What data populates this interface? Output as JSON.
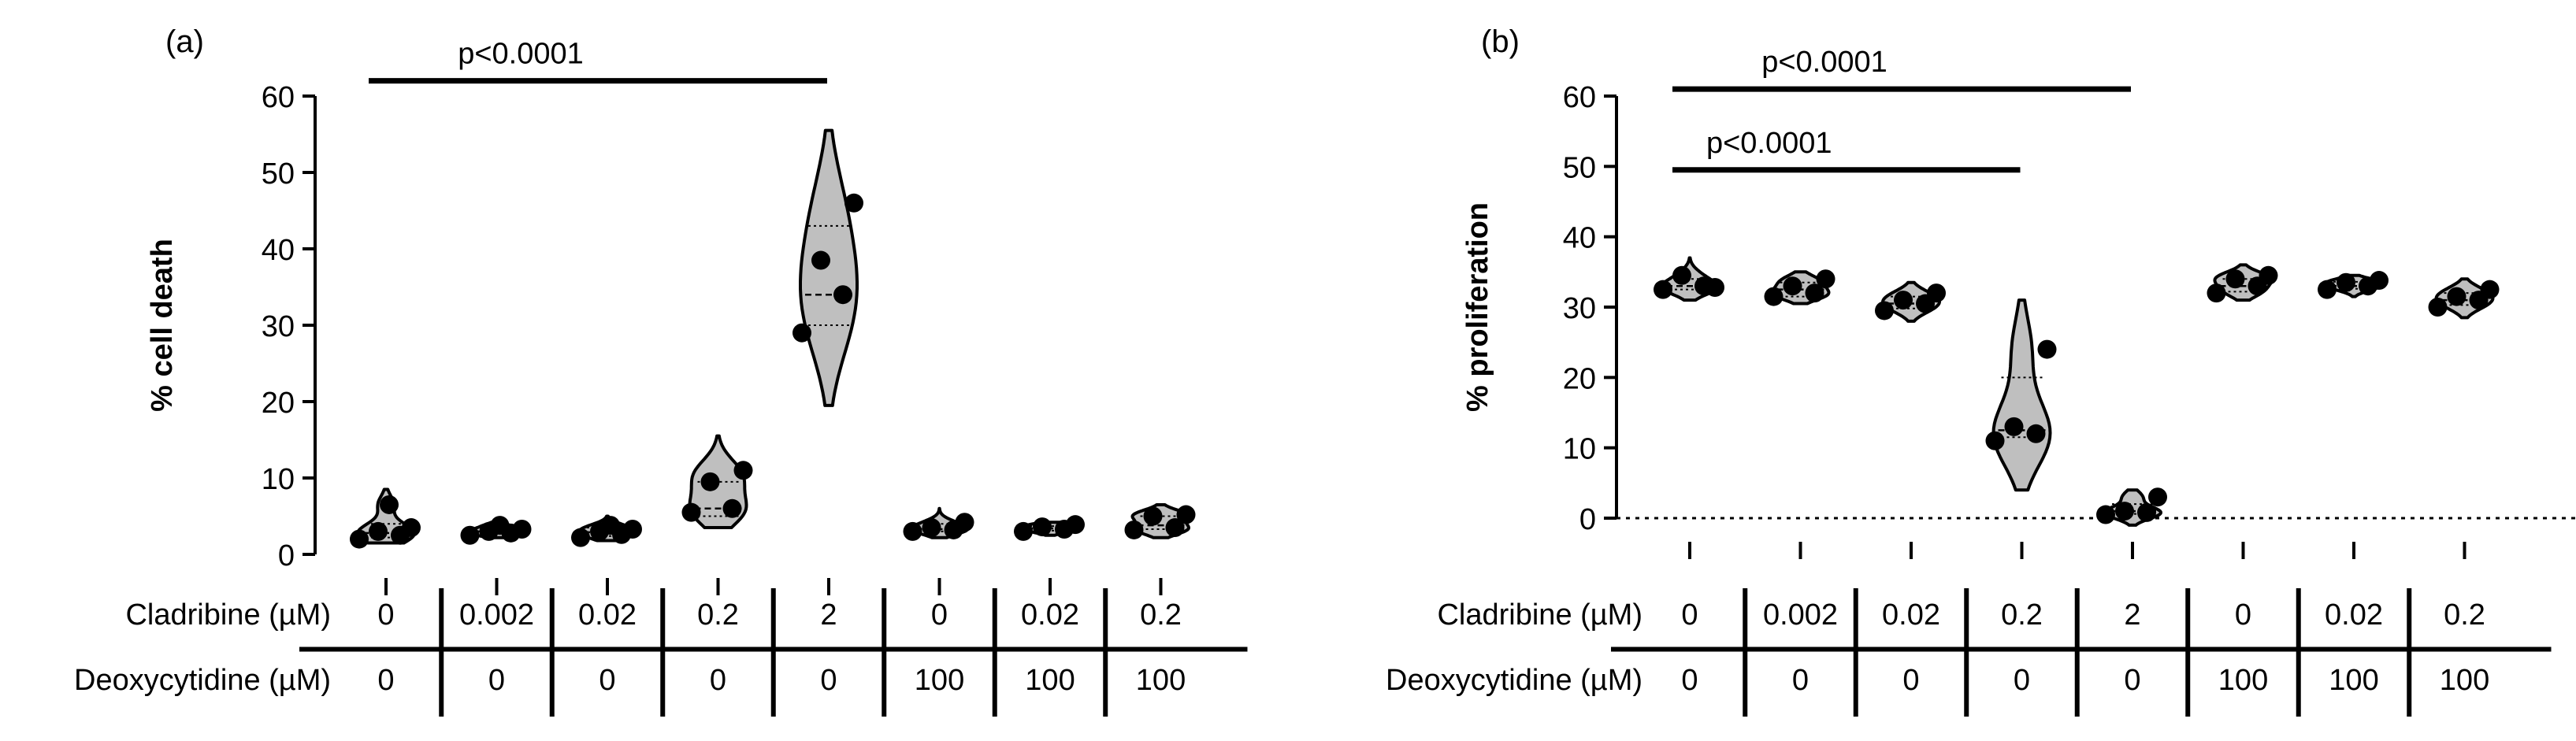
{
  "chart_data": [
    {
      "type": "violin",
      "panel_label": "(a)",
      "ylabel": "% cell death",
      "ylim": [
        0,
        60
      ],
      "yticks": [
        0,
        10,
        20,
        30,
        40,
        50,
        60
      ],
      "categories": [
        "0|0",
        "0.002|0",
        "0.02|0",
        "0.2|0",
        "2|0",
        "0|100",
        "0.02|100",
        "0.2|100"
      ],
      "table": {
        "row_labels": [
          "Cladribine (µM)",
          "Deoxycytidine (µM)"
        ],
        "rows": [
          [
            "0",
            "0.002",
            "0.02",
            "0.2",
            "2",
            "0",
            "0.02",
            "0.2"
          ],
          [
            "0",
            "0",
            "0",
            "0",
            "0",
            "100",
            "100",
            "100"
          ]
        ]
      },
      "groups": [
        {
          "points": [
            2.0,
            2.5,
            3.0,
            3.5,
            6.5
          ],
          "median": 2.8,
          "q1": 2.2,
          "q3": 4.0,
          "min": 1.5,
          "max": 8.5
        },
        {
          "points": [
            2.5,
            2.8,
            3.0,
            3.3,
            3.8
          ],
          "median": 3.0,
          "q1": 2.7,
          "q3": 3.5,
          "min": 2.2,
          "max": 4.2
        },
        {
          "points": [
            2.2,
            2.6,
            3.0,
            3.3,
            3.8
          ],
          "median": 2.9,
          "q1": 2.4,
          "q3": 3.5,
          "min": 1.8,
          "max": 5.0
        },
        {
          "points": [
            5.5,
            6.0,
            9.5,
            11.0
          ],
          "median": 6.0,
          "q1": 5.0,
          "q3": 9.5,
          "min": 3.5,
          "max": 15.5
        },
        {
          "points": [
            29,
            34,
            38.5,
            46
          ],
          "median": 34,
          "q1": 30,
          "q3": 43,
          "min": 19.5,
          "max": 55.5
        },
        {
          "points": [
            3.0,
            3.2,
            3.5,
            4.2
          ],
          "median": 3.3,
          "q1": 3.0,
          "q3": 4.0,
          "min": 2.2,
          "max": 6.0
        },
        {
          "points": [
            3.0,
            3.3,
            3.6,
            3.9
          ],
          "median": 3.4,
          "q1": 3.1,
          "q3": 3.7,
          "min": 2.5,
          "max": 4.2
        },
        {
          "points": [
            3.2,
            3.5,
            5.0,
            5.2
          ],
          "median": 3.8,
          "q1": 3.3,
          "q3": 5.0,
          "min": 2.2,
          "max": 6.5
        }
      ],
      "significance": [
        {
          "from": 0,
          "to": 4,
          "y": 62,
          "label": "p<0.0001"
        }
      ],
      "zero_line": false
    },
    {
      "type": "violin",
      "panel_label": "(b)",
      "ylabel": "% proliferation",
      "ylim": [
        0,
        60
      ],
      "yticks": [
        0,
        10,
        20,
        30,
        40,
        50,
        60
      ],
      "categories": [
        "0|0",
        "0.002|0",
        "0.02|0",
        "0.2|0",
        "2|0",
        "0|100",
        "0.02|100",
        "0.2|100"
      ],
      "table": {
        "row_labels": [
          "Cladribine (µM)",
          "Deoxycytidine (µM)"
        ],
        "rows": [
          [
            "0",
            "0.002",
            "0.02",
            "0.2",
            "2",
            "0",
            "0.02",
            "0.2"
          ],
          [
            "0",
            "0",
            "0",
            "0",
            "0",
            "100",
            "100",
            "100"
          ]
        ]
      },
      "groups": [
        {
          "points": [
            32.5,
            33.0,
            34.5,
            32.8
          ],
          "median": 33.0,
          "q1": 32.5,
          "q3": 34.0,
          "min": 31.0,
          "max": 37.0
        },
        {
          "points": [
            31.5,
            32.0,
            33.0,
            34.0
          ],
          "median": 32.5,
          "q1": 31.5,
          "q3": 33.5,
          "min": 30.5,
          "max": 35.0
        },
        {
          "points": [
            29.5,
            30.5,
            31.0,
            32.0
          ],
          "median": 30.5,
          "q1": 29.8,
          "q3": 31.5,
          "min": 28.0,
          "max": 33.5
        },
        {
          "points": [
            11.0,
            12.0,
            13.0,
            24.0
          ],
          "median": 12.5,
          "q1": 11.5,
          "q3": 20.0,
          "min": 4.0,
          "max": 31.0
        },
        {
          "points": [
            0.5,
            0.8,
            1.0,
            3.0
          ],
          "median": 1.0,
          "q1": 0.6,
          "q3": 2.0,
          "min": -1.0,
          "max": 4.0
        },
        {
          "points": [
            32.0,
            33.0,
            34.0,
            34.5
          ],
          "median": 33.0,
          "q1": 32.2,
          "q3": 34.0,
          "min": 31.0,
          "max": 36.0
        },
        {
          "points": [
            32.5,
            33.0,
            33.5,
            33.8
          ],
          "median": 33.0,
          "q1": 32.6,
          "q3": 33.6,
          "min": 31.5,
          "max": 34.5
        },
        {
          "points": [
            30.0,
            31.0,
            31.5,
            32.5
          ],
          "median": 31.0,
          "q1": 30.3,
          "q3": 32.0,
          "min": 28.5,
          "max": 34.0
        }
      ],
      "significance": [
        {
          "from": 0,
          "to": 4,
          "y": 61,
          "label": "p<0.0001"
        },
        {
          "from": 0,
          "to": 3,
          "y": 49.5,
          "label": "p<0.0001"
        }
      ],
      "zero_line": true
    }
  ]
}
